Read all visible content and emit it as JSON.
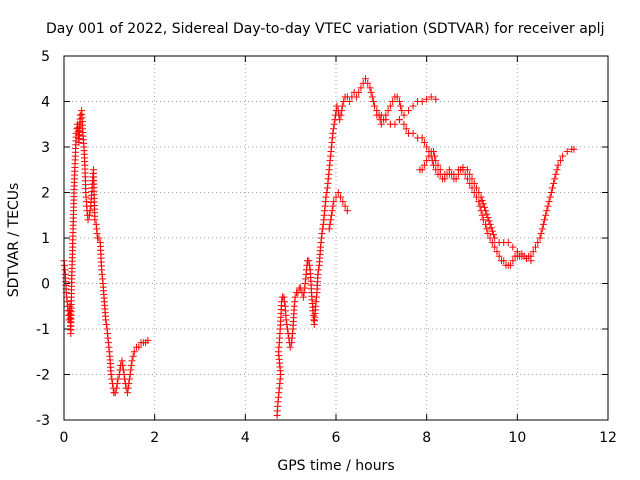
{
  "chart_data": {
    "type": "scatter",
    "title": "Day 001 of 2022, Sidereal Day-to-day VTEC variation (SDTVAR) for receiver aplj",
    "xlabel": "GPS time / hours",
    "ylabel": "SDTVAR / TECUs",
    "xlim": [
      0,
      12
    ],
    "ylim": [
      -3,
      5
    ],
    "xticks": [
      0,
      2,
      4,
      6,
      8,
      10,
      12
    ],
    "yticks": [
      -3,
      -2,
      -1,
      0,
      1,
      2,
      3,
      4,
      5
    ],
    "grid": true,
    "marker": "+",
    "color": "#ff0000",
    "series": [
      {
        "name": "SDTVAR",
        "segments": [
          [
            [
              0.0,
              0.5
            ],
            [
              0.03,
              0.2
            ],
            [
              0.05,
              -0.2
            ],
            [
              0.07,
              -0.4
            ],
            [
              0.09,
              -0.6
            ],
            [
              0.11,
              -0.8
            ],
            [
              0.13,
              -0.5
            ],
            [
              0.15,
              -1.1
            ],
            [
              0.17,
              0.1
            ],
            [
              0.19,
              0.8
            ],
            [
              0.21,
              1.6
            ],
            [
              0.23,
              2.3
            ],
            [
              0.25,
              2.8
            ],
            [
              0.27,
              3.3
            ],
            [
              0.3,
              3.5
            ],
            [
              0.33,
              3.1
            ],
            [
              0.36,
              3.7
            ],
            [
              0.39,
              3.8
            ],
            [
              0.41,
              3.4
            ],
            [
              0.44,
              3.0
            ],
            [
              0.46,
              2.6
            ],
            [
              0.48,
              2.0
            ],
            [
              0.5,
              1.7
            ],
            [
              0.53,
              1.4
            ],
            [
              0.56,
              1.5
            ],
            [
              0.59,
              1.7
            ],
            [
              0.62,
              2.1
            ],
            [
              0.65,
              2.5
            ],
            [
              0.68,
              1.4
            ],
            [
              0.71,
              1.3
            ],
            [
              0.74,
              1.0
            ],
            [
              0.77,
              1.0
            ],
            [
              0.8,
              0.9
            ],
            [
              0.83,
              0.3
            ],
            [
              0.86,
              0.0
            ],
            [
              0.89,
              -0.4
            ],
            [
              0.92,
              -0.8
            ],
            [
              0.95,
              -1.0
            ],
            [
              0.98,
              -1.3
            ],
            [
              1.01,
              -1.6
            ],
            [
              1.04,
              -2.0
            ],
            [
              1.07,
              -2.2
            ],
            [
              1.1,
              -2.4
            ],
            [
              1.13,
              -2.4
            ],
            [
              1.16,
              -2.3
            ],
            [
              1.19,
              -2.1
            ],
            [
              1.22,
              -2.0
            ],
            [
              1.25,
              -1.8
            ],
            [
              1.28,
              -1.7
            ],
            [
              1.31,
              -1.9
            ],
            [
              1.34,
              -2.1
            ],
            [
              1.37,
              -2.3
            ],
            [
              1.4,
              -2.4
            ],
            [
              1.43,
              -2.2
            ],
            [
              1.46,
              -2.0
            ],
            [
              1.5,
              -1.7
            ],
            [
              1.55,
              -1.5
            ],
            [
              1.6,
              -1.4
            ],
            [
              1.65,
              -1.4
            ],
            [
              1.7,
              -1.3
            ],
            [
              1.75,
              -1.3
            ],
            [
              1.8,
              -1.3
            ],
            [
              1.85,
              -1.25
            ]
          ],
          [
            [
              4.7,
              -2.9
            ],
            [
              4.72,
              -2.6
            ],
            [
              4.74,
              -2.4
            ],
            [
              4.76,
              -2.2
            ],
            [
              4.78,
              -2.0
            ],
            [
              4.73,
              -1.5
            ],
            [
              4.75,
              -1.3
            ],
            [
              4.77,
              -1.0
            ],
            [
              4.8,
              -0.4
            ],
            [
              4.82,
              -0.3
            ],
            [
              4.85,
              -0.3
            ],
            [
              4.88,
              -0.5
            ],
            [
              4.9,
              -0.8
            ],
            [
              4.93,
              -1.0
            ],
            [
              4.96,
              -1.2
            ],
            [
              4.99,
              -1.4
            ],
            [
              5.02,
              -1.3
            ],
            [
              5.05,
              -1.0
            ],
            [
              5.08,
              -0.5
            ],
            [
              5.1,
              -0.3
            ],
            [
              5.13,
              -0.2
            ],
            [
              5.16,
              -0.2
            ],
            [
              5.19,
              -0.1
            ],
            [
              5.22,
              -0.1
            ],
            [
              5.25,
              -0.2
            ],
            [
              5.28,
              -0.3
            ],
            [
              5.31,
              -0.1
            ],
            [
              5.34,
              0.2
            ],
            [
              5.37,
              0.5
            ],
            [
              5.4,
              0.5
            ],
            [
              5.43,
              0.3
            ],
            [
              5.46,
              -0.2
            ],
            [
              5.49,
              -0.6
            ],
            [
              5.52,
              -0.9
            ],
            [
              5.55,
              -0.5
            ],
            [
              5.58,
              -0.2
            ],
            [
              5.6,
              0.2
            ],
            [
              5.63,
              0.4
            ],
            [
              5.66,
              0.8
            ],
            [
              5.69,
              1.1
            ],
            [
              5.72,
              1.3
            ],
            [
              5.75,
              1.6
            ],
            [
              5.78,
              1.9
            ],
            [
              5.81,
              2.1
            ],
            [
              5.84,
              2.4
            ],
            [
              5.87,
              2.7
            ],
            [
              5.9,
              3.0
            ],
            [
              5.93,
              3.3
            ],
            [
              5.96,
              3.5
            ],
            [
              5.99,
              3.7
            ],
            [
              6.02,
              3.9
            ],
            [
              6.05,
              3.8
            ],
            [
              6.08,
              3.6
            ],
            [
              6.11,
              3.7
            ],
            [
              6.14,
              3.9
            ],
            [
              6.17,
              4.0
            ],
            [
              6.2,
              4.1
            ],
            [
              6.25,
              4.1
            ],
            [
              6.3,
              4.0
            ],
            [
              6.35,
              4.1
            ],
            [
              6.4,
              4.2
            ],
            [
              6.45,
              4.1
            ],
            [
              6.5,
              4.2
            ],
            [
              6.55,
              4.3
            ],
            [
              6.6,
              4.4
            ],
            [
              6.65,
              4.5
            ],
            [
              6.7,
              4.4
            ],
            [
              6.75,
              4.3
            ],
            [
              6.8,
              4.1
            ],
            [
              6.85,
              3.9
            ],
            [
              6.9,
              3.8
            ],
            [
              6.95,
              3.7
            ],
            [
              7.0,
              3.5
            ],
            [
              7.05,
              3.6
            ],
            [
              7.1,
              3.7
            ],
            [
              7.15,
              3.8
            ],
            [
              7.2,
              3.9
            ],
            [
              7.25,
              4.0
            ],
            [
              7.3,
              4.1
            ],
            [
              7.35,
              4.1
            ],
            [
              7.4,
              4.0
            ],
            [
              7.45,
              3.8
            ]
          ],
          [
            [
              5.85,
              1.2
            ],
            [
              5.9,
              1.5
            ],
            [
              5.95,
              1.8
            ],
            [
              6.0,
              1.9
            ],
            [
              6.05,
              2.0
            ],
            [
              6.1,
              1.9
            ],
            [
              6.15,
              1.8
            ],
            [
              6.2,
              1.7
            ],
            [
              6.25,
              1.6
            ]
          ],
          [
            [
              7.4,
              3.6
            ],
            [
              7.5,
              3.5
            ],
            [
              7.6,
              3.3
            ],
            [
              7.7,
              3.3
            ],
            [
              7.8,
              3.2
            ],
            [
              7.9,
              3.2
            ],
            [
              8.0,
              3.0
            ],
            [
              8.05,
              2.9
            ],
            [
              8.1,
              2.8
            ],
            [
              8.15,
              2.6
            ],
            [
              8.2,
              2.5
            ],
            [
              8.25,
              2.4
            ],
            [
              8.3,
              2.4
            ],
            [
              8.35,
              2.3
            ],
            [
              8.4,
              2.3
            ],
            [
              8.45,
              2.4
            ],
            [
              8.5,
              2.5
            ],
            [
              8.55,
              2.4
            ],
            [
              8.6,
              2.3
            ],
            [
              8.65,
              2.3
            ],
            [
              8.7,
              2.4
            ],
            [
              8.75,
              2.5
            ],
            [
              8.8,
              2.5
            ],
            [
              8.85,
              2.4
            ],
            [
              8.9,
              2.3
            ],
            [
              8.95,
              2.2
            ],
            [
              9.0,
              2.1
            ],
            [
              9.05,
              2.0
            ],
            [
              9.1,
              1.9
            ],
            [
              9.15,
              1.8
            ],
            [
              9.2,
              1.6
            ],
            [
              9.25,
              1.4
            ],
            [
              9.3,
              1.3
            ],
            [
              9.35,
              1.1
            ],
            [
              9.4,
              1.0
            ],
            [
              9.45,
              0.9
            ],
            [
              9.5,
              0.8
            ],
            [
              9.55,
              0.7
            ],
            [
              9.6,
              0.6
            ],
            [
              9.65,
              0.5
            ],
            [
              9.7,
              0.5
            ],
            [
              9.75,
              0.4
            ],
            [
              9.8,
              0.4
            ],
            [
              9.85,
              0.4
            ],
            [
              9.9,
              0.5
            ],
            [
              9.95,
              0.6
            ],
            [
              10.0,
              0.6
            ],
            [
              10.05,
              0.6
            ],
            [
              10.1,
              0.65
            ],
            [
              10.15,
              0.6
            ],
            [
              10.2,
              0.55
            ],
            [
              10.25,
              0.6
            ],
            [
              10.3,
              0.6
            ],
            [
              10.35,
              0.7
            ],
            [
              10.4,
              0.8
            ],
            [
              10.45,
              0.9
            ],
            [
              10.5,
              1.0
            ],
            [
              10.55,
              1.2
            ],
            [
              10.6,
              1.4
            ],
            [
              10.65,
              1.6
            ],
            [
              10.7,
              1.8
            ],
            [
              10.75,
              2.0
            ],
            [
              10.8,
              2.2
            ],
            [
              10.85,
              2.4
            ],
            [
              10.9,
              2.6
            ],
            [
              10.95,
              2.7
            ],
            [
              11.0,
              2.8
            ],
            [
              11.1,
              2.9
            ],
            [
              11.2,
              2.95
            ],
            [
              11.25,
              2.95
            ]
          ],
          [
            [
              6.9,
              3.7
            ],
            [
              7.0,
              3.7
            ],
            [
              7.1,
              3.6
            ],
            [
              7.2,
              3.5
            ],
            [
              7.3,
              3.5
            ],
            [
              7.4,
              3.6
            ],
            [
              7.5,
              3.7
            ],
            [
              7.6,
              3.8
            ],
            [
              7.7,
              3.9
            ],
            [
              7.8,
              4.0
            ],
            [
              7.9,
              4.0
            ],
            [
              8.0,
              4.05
            ],
            [
              8.1,
              4.1
            ],
            [
              8.2,
              4.05
            ]
          ],
          [
            [
              7.85,
              2.5
            ],
            [
              7.9,
              2.5
            ],
            [
              7.95,
              2.6
            ],
            [
              8.0,
              2.7
            ],
            [
              8.05,
              2.8
            ],
            [
              8.1,
              2.9
            ],
            [
              8.15,
              2.9
            ],
            [
              8.2,
              2.7
            ],
            [
              8.3,
              2.5
            ],
            [
              8.4,
              2.4
            ],
            [
              8.5,
              2.4
            ],
            [
              8.6,
              2.4
            ],
            [
              8.7,
              2.5
            ],
            [
              8.8,
              2.55
            ],
            [
              8.9,
              2.5
            ],
            [
              9.0,
              2.3
            ],
            [
              9.1,
              2.1
            ],
            [
              9.2,
              1.9
            ],
            [
              9.3,
              1.6
            ],
            [
              9.4,
              1.3
            ],
            [
              9.5,
              1.0
            ],
            [
              9.6,
              0.9
            ],
            [
              9.7,
              0.9
            ],
            [
              9.8,
              0.9
            ],
            [
              9.9,
              0.8
            ],
            [
              10.0,
              0.7
            ],
            [
              10.1,
              0.6
            ],
            [
              10.2,
              0.55
            ],
            [
              10.3,
              0.5
            ]
          ]
        ]
      }
    ]
  }
}
